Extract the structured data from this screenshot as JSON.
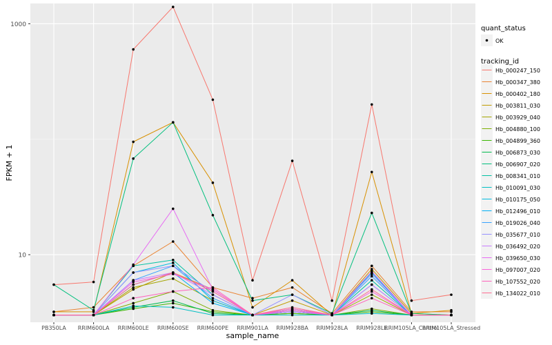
{
  "chart_data": {
    "type": "line",
    "title": "",
    "xlabel": "sample_name",
    "ylabel": "FPKM + 1",
    "y_scale": "log10",
    "y_ticks": [
      10,
      1000
    ],
    "y_tick_labels": [
      "10",
      "1000"
    ],
    "ylim": [
      2.6,
      1500
    ],
    "grid": true,
    "legend_position": "right",
    "categories": [
      "PB350LA",
      "RRIM600LA",
      "RRIM600LE",
      "RRIM600SE",
      "RRIM600PE",
      "RRIM901LA",
      "RRIM928BA",
      "RRIM928LA",
      "RRIM928LE",
      "RRIM105LA_Control",
      "RRIM105LA_Stressed"
    ],
    "quant_status": {
      "title": "quant_status",
      "items": [
        "OK"
      ]
    },
    "series_legend_title": "tracking_id",
    "series": [
      {
        "name": "Hb_000247_150",
        "color": "#F8766D",
        "values": [
          5.5,
          5.8,
          600,
          1400,
          220,
          6,
          65,
          4,
          200,
          4,
          4.5
        ]
      },
      {
        "name": "Hb_000347_380",
        "color": "#EA8331",
        "values": [
          3.2,
          3.5,
          8,
          13,
          5.2,
          4.2,
          5.2,
          3.1,
          8,
          3.2,
          3.2
        ]
      },
      {
        "name": "Hb_000402_180",
        "color": "#D89000",
        "values": [
          3.2,
          3.2,
          95,
          140,
          42,
          3.5,
          6,
          3.0,
          52,
          3.1,
          3.3
        ]
      },
      {
        "name": "Hb_003811_030",
        "color": "#C09B00",
        "values": [
          3.0,
          3.0,
          5,
          7,
          5,
          3.0,
          4,
          3.0,
          7.5,
          3.1,
          3.0
        ]
      },
      {
        "name": "Hb_003929_040",
        "color": "#A3A500",
        "values": [
          3.0,
          3.0,
          5.2,
          6.2,
          4,
          3.0,
          3.3,
          3.0,
          4.5,
          3.0,
          3.0
        ]
      },
      {
        "name": "Hb_004880_100",
        "color": "#7CAE00",
        "values": [
          3.0,
          3.0,
          3.8,
          4.8,
          3.3,
          3.0,
          3.1,
          3.0,
          3.4,
          3.0,
          3.0
        ]
      },
      {
        "name": "Hb_004899_360",
        "color": "#39B600",
        "values": [
          3.0,
          3.0,
          3.4,
          3.8,
          3.2,
          3.0,
          3.1,
          3.0,
          3.2,
          3.0,
          3.0
        ]
      },
      {
        "name": "Hb_006873_030",
        "color": "#00BB4E",
        "values": [
          3.0,
          3.0,
          3.5,
          4.0,
          3.1,
          3.0,
          3.2,
          3.0,
          3.3,
          3.0,
          3.0
        ]
      },
      {
        "name": "Hb_006907_020",
        "color": "#00BF7D",
        "values": [
          5.5,
          3.3,
          68,
          140,
          22,
          4,
          4.5,
          3.1,
          23,
          3.1,
          3.0
        ]
      },
      {
        "name": "Hb_008341_010",
        "color": "#00C1A3",
        "values": [
          3.0,
          3.0,
          8,
          9,
          4.5,
          3.0,
          3.3,
          3.0,
          6,
          3.0,
          3.0
        ]
      },
      {
        "name": "Hb_010091_030",
        "color": "#00BFC4",
        "values": [
          3.0,
          3.0,
          3.6,
          3.5,
          3.0,
          3.0,
          3.0,
          3.0,
          3.1,
          3.0,
          3.0
        ]
      },
      {
        "name": "Hb_010175_050",
        "color": "#00BAE0",
        "values": [
          3.0,
          3.0,
          7,
          8.5,
          4,
          3.0,
          3.4,
          3.0,
          7,
          3.0,
          3.0
        ]
      },
      {
        "name": "Hb_012496_010",
        "color": "#00B0F6",
        "values": [
          3.0,
          3.0,
          5.5,
          7,
          3.8,
          3.0,
          3.2,
          3.0,
          5.5,
          3.0,
          3.0
        ]
      },
      {
        "name": "Hb_019026_040",
        "color": "#35A2FF",
        "values": [
          3.0,
          3.0,
          6,
          8,
          4.2,
          3.0,
          3.3,
          3.0,
          6.5,
          3.0,
          3.0
        ]
      },
      {
        "name": "Hb_035677_010",
        "color": "#9590FF",
        "values": [
          3.0,
          3.0,
          7,
          8,
          4.8,
          3.0,
          4.5,
          3.0,
          6.8,
          3.0,
          3.0
        ]
      },
      {
        "name": "Hb_036492_020",
        "color": "#C77CFF",
        "values": [
          3.0,
          3.0,
          6,
          7,
          4.5,
          3.0,
          3.2,
          3.0,
          5.5,
          3.0,
          3.0
        ]
      },
      {
        "name": "Hb_039650_030",
        "color": "#E76BF3",
        "values": [
          3.0,
          3.0,
          8.2,
          25,
          5,
          3.0,
          3.3,
          3.0,
          7.2,
          3.0,
          3.0
        ]
      },
      {
        "name": "Hb_097007_020",
        "color": "#FA62DB",
        "values": [
          3.0,
          3.0,
          5.8,
          6.8,
          5,
          3.0,
          3.3,
          3.0,
          4.8,
          3.0,
          3.0
        ]
      },
      {
        "name": "Hb_107552_020",
        "color": "#FF62BC",
        "values": [
          3.0,
          3.0,
          4.2,
          4.8,
          5.2,
          3.0,
          3.4,
          3.0,
          4.2,
          3.0,
          3.0
        ]
      },
      {
        "name": "Hb_134022_010",
        "color": "#FF6C91",
        "values": [
          3.0,
          3.0,
          5.5,
          7,
          4.8,
          3.0,
          3.5,
          3.0,
          5,
          3.0,
          3.0
        ]
      }
    ]
  }
}
